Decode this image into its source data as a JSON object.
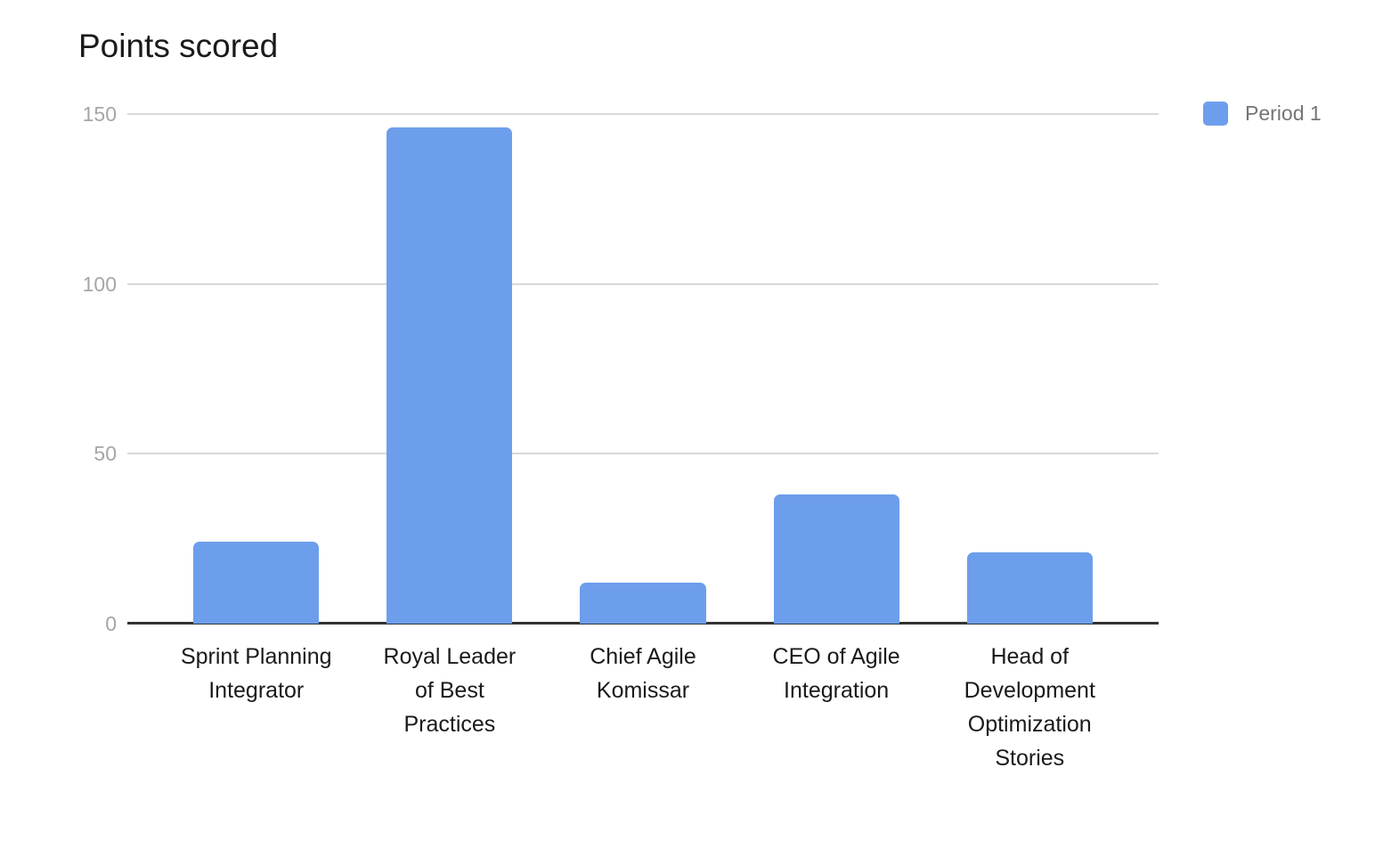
{
  "chart_data": {
    "type": "bar",
    "title": "Points scored",
    "categories": [
      "Sprint Planning Integrator",
      "Royal Leader of Best Practices",
      "Chief Agile Komissar",
      "CEO of Agile Integration",
      "Head of Development Optimization Stories"
    ],
    "category_label_lines": [
      [
        "Sprint Planning",
        "Integrator"
      ],
      [
        "Royal Leader",
        "of Best",
        "Practices"
      ],
      [
        "Chief Agile",
        "Komissar"
      ],
      [
        "CEO of Agile",
        "Integration"
      ],
      [
        "Head of",
        "Development",
        "Optimization",
        "Stories"
      ]
    ],
    "series": [
      {
        "name": "Period 1",
        "values": [
          24,
          146,
          12,
          38,
          21
        ]
      }
    ],
    "xlabel": "",
    "ylabel": "",
    "ylim": [
      0,
      150
    ],
    "yticks": [
      0,
      50,
      100,
      150
    ],
    "grid": true,
    "legend_position": "top-right",
    "colors": {
      "bar": "#6d9eeb",
      "gridline": "#d9d9d9",
      "axis_line": "#333333",
      "tick_label": "#a6a6a6",
      "category_label": "#1a1a1a",
      "title": "#1a1a1a",
      "legend_label": "#757575",
      "background": "#ffffff"
    }
  }
}
